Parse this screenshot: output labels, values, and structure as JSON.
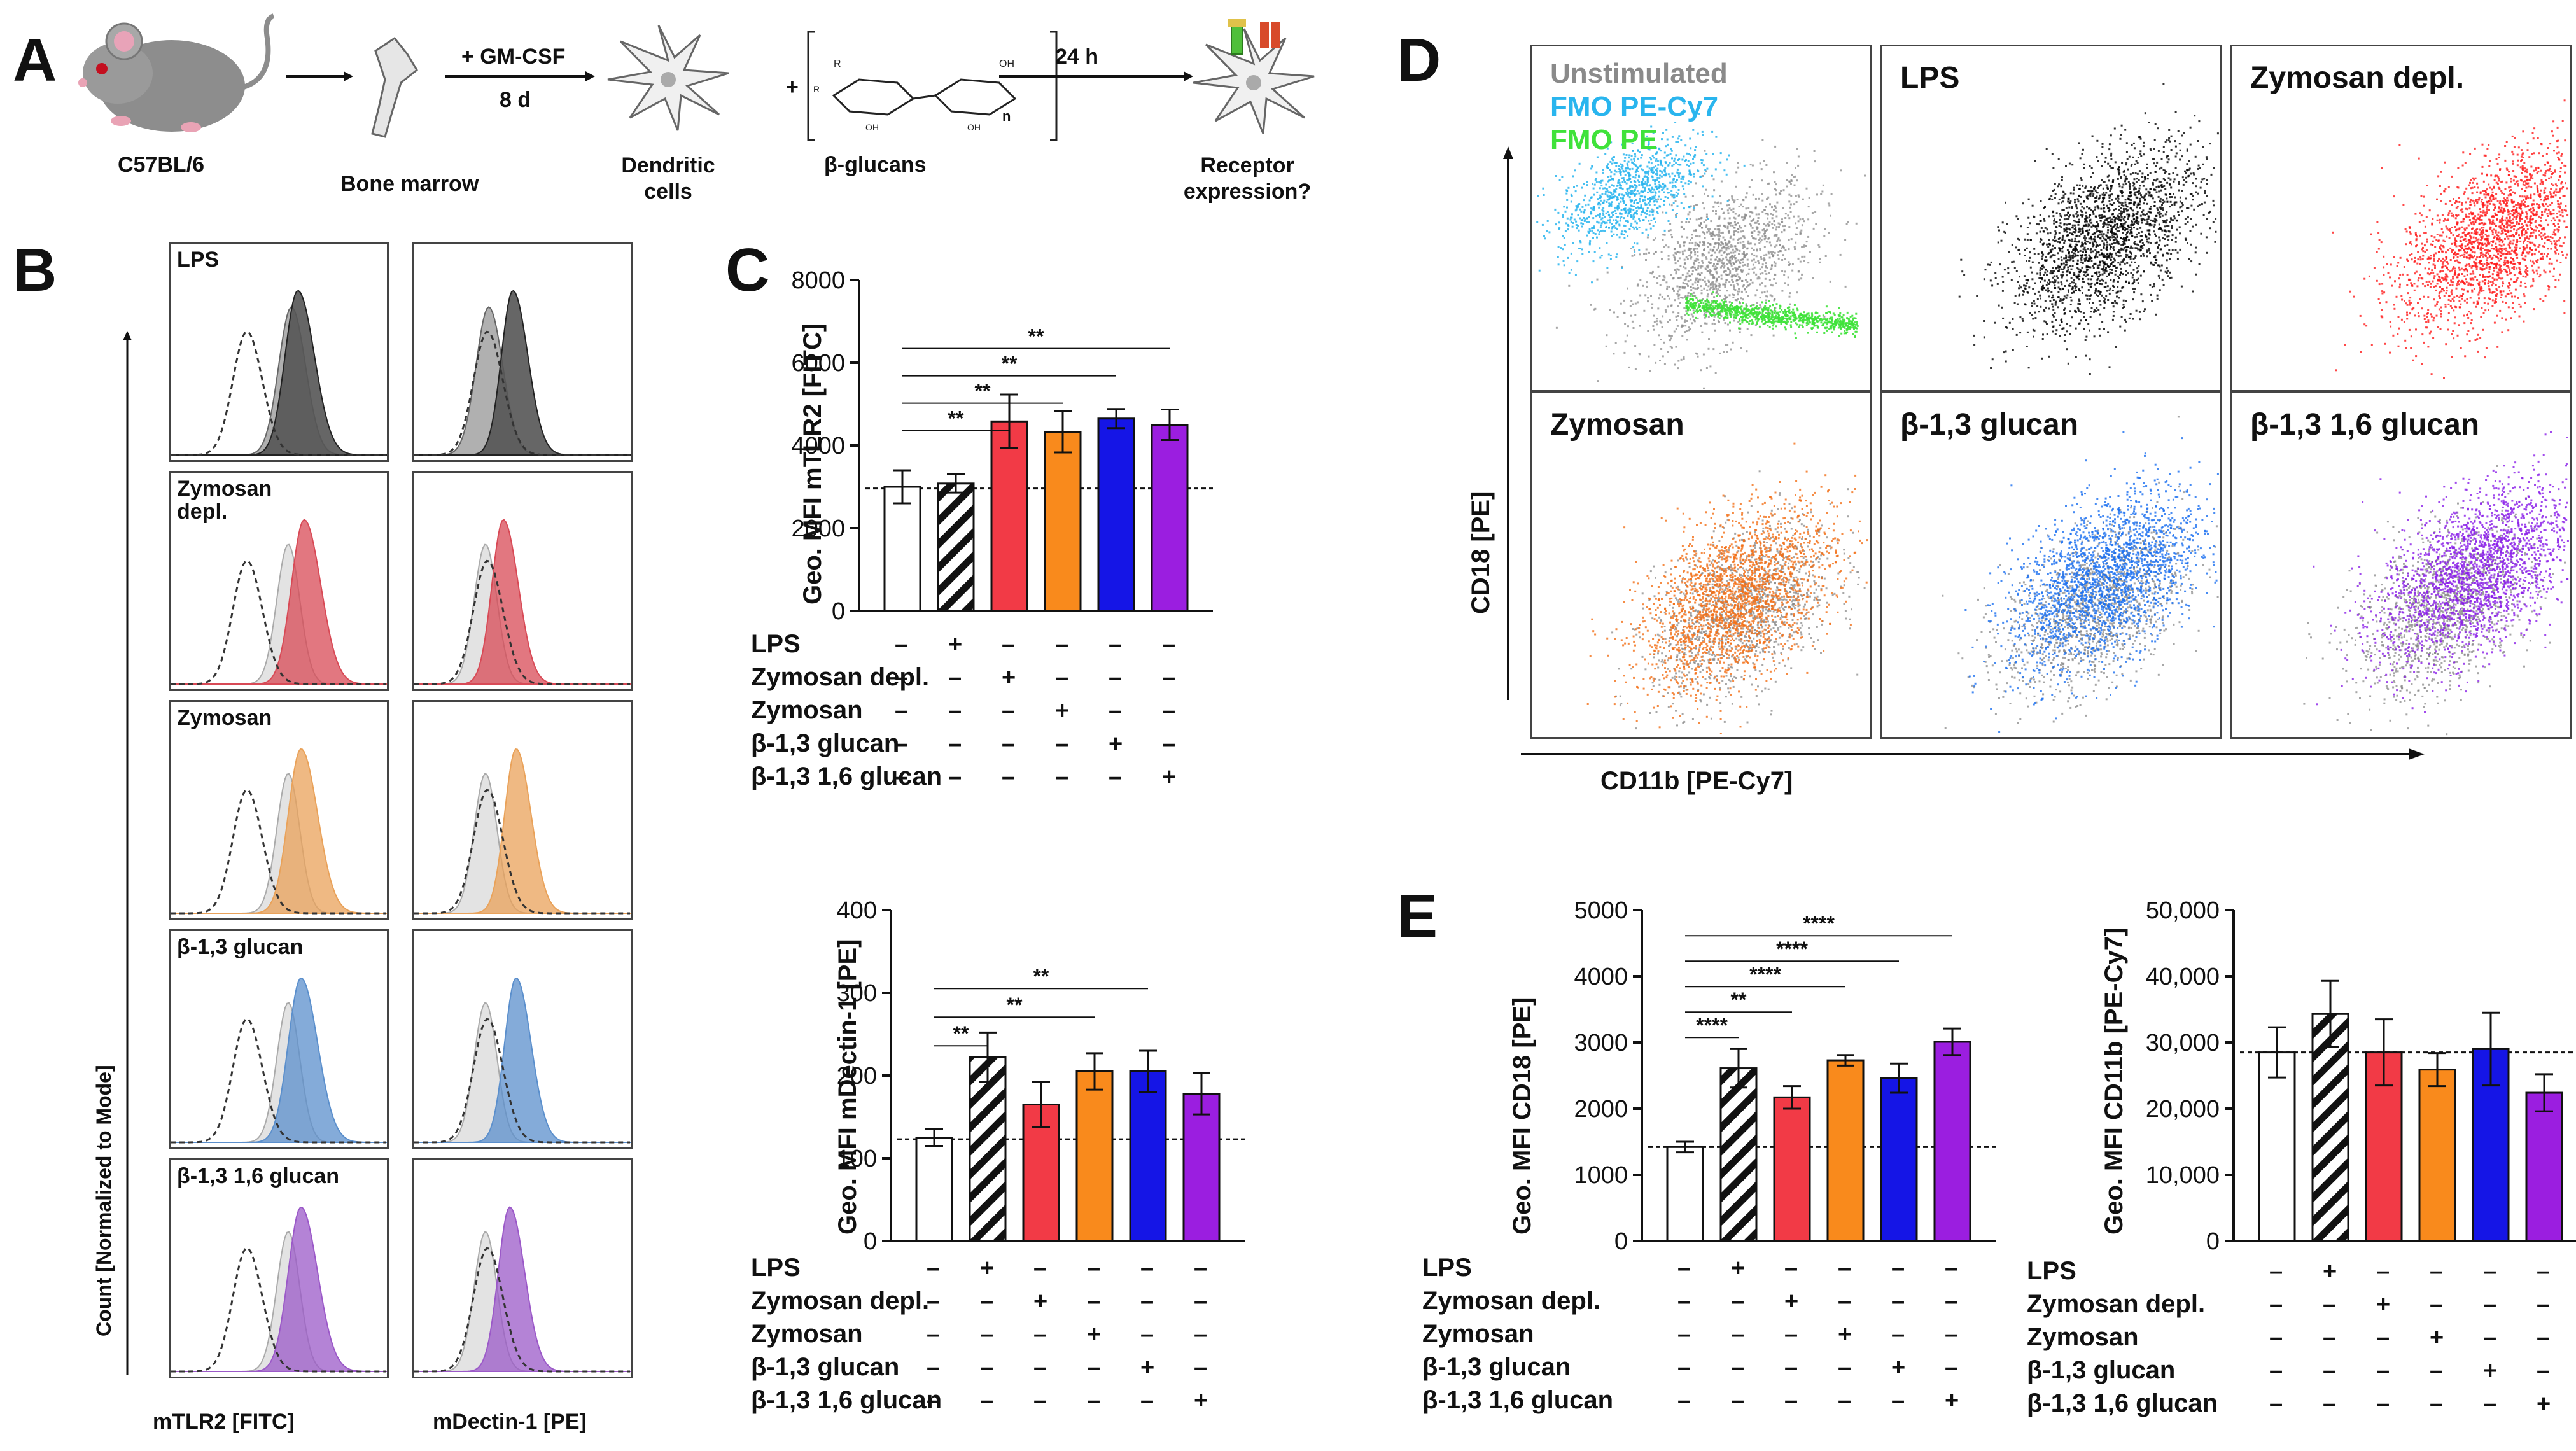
{
  "panel_letters": {
    "a": "A",
    "b": "B",
    "c": "C",
    "d": "D",
    "e": "E"
  },
  "panel_a": {
    "mouse": "C57BL/6",
    "bone": "Bone marrow",
    "arrow2_top": "+ GM-CSF",
    "arrow2_bottom": "8 d",
    "dc": "Dendritic\ncells",
    "plus": "+",
    "glucans": "β-glucans",
    "n": "n",
    "arrow3_top": "24 h",
    "receptor": "Receptor\nexpression?"
  },
  "panel_b": {
    "rows": [
      "LPS",
      "Zymosan\ndepl.",
      "Zymosan",
      "β-1,3 glucan",
      "β-1,3 1,6 glucan"
    ],
    "colors": [
      "#555555",
      "#d84a56",
      "#e9a25a",
      "#5b8fcc",
      "#9b59c8"
    ],
    "y_axis": "Count [Normalized to  Mode]",
    "x1": "mTLR2 [FITC]",
    "x2": "mDectin-1 [PE]"
  },
  "treatment_table": {
    "rows": [
      "LPS",
      "Zymosan depl.",
      "Zymosan",
      "β-1,3 glucan",
      "β-1,3 1,6 glucan"
    ],
    "marks": [
      [
        "–",
        "+",
        "–",
        "–",
        "–",
        "–"
      ],
      [
        "–",
        "–",
        "+",
        "–",
        "–",
        "–"
      ],
      [
        "–",
        "–",
        "–",
        "+",
        "–",
        "–"
      ],
      [
        "–",
        "–",
        "–",
        "–",
        "+",
        "–"
      ],
      [
        "–",
        "–",
        "–",
        "–",
        "–",
        "+"
      ]
    ]
  },
  "bar_colors": [
    "#ffffff",
    "hatch",
    "#f23a46",
    "#f98a1c",
    "#1515e6",
    "#9b1ee0"
  ],
  "chart_data": [
    {
      "id": "c_tlr2",
      "type": "bar",
      "ylabel": "Geo. MFI mTLR2 [FITC]",
      "ylim": [
        0,
        8000
      ],
      "ticks": [
        "0",
        "2000",
        "4000",
        "6000",
        "8000"
      ],
      "tickvals": [
        0,
        2000,
        4000,
        6000,
        8000
      ],
      "values": [
        3000,
        3080,
        4580,
        4330,
        4650,
        4500
      ],
      "errors": [
        400,
        220,
        650,
        500,
        230,
        370
      ],
      "baseline": 2960,
      "sig": [
        {
          "to": 2,
          "text": "**"
        },
        {
          "to": 3,
          "text": "**"
        },
        {
          "to": 4,
          "text": "**"
        },
        {
          "to": 5,
          "text": "**"
        }
      ]
    },
    {
      "id": "c_dectin",
      "type": "bar",
      "ylabel": "Geo. MFI mDectin-1 [PE]",
      "ylim": [
        0,
        400
      ],
      "ticks": [
        "0",
        "100",
        "200",
        "300",
        "400"
      ],
      "tickvals": [
        0,
        100,
        200,
        300,
        400
      ],
      "values": [
        125,
        222,
        165,
        205,
        205,
        178
      ],
      "errors": [
        10,
        30,
        27,
        22,
        25,
        25
      ],
      "baseline": 123,
      "sig": [
        {
          "to": 1,
          "text": "**"
        },
        {
          "to": 3,
          "text": "**"
        },
        {
          "to": 4,
          "text": "**"
        }
      ]
    },
    {
      "id": "e_cd18",
      "type": "bar",
      "ylabel": "Geo. MFI CD18 [PE]",
      "ylim": [
        0,
        5000
      ],
      "ticks": [
        "0",
        "1000",
        "2000",
        "3000",
        "4000",
        "5000"
      ],
      "tickvals": [
        0,
        1000,
        2000,
        3000,
        4000,
        5000
      ],
      "values": [
        1420,
        2610,
        2170,
        2730,
        2460,
        3010
      ],
      "errors": [
        80,
        290,
        170,
        80,
        220,
        200
      ],
      "baseline": 1420,
      "sig": [
        {
          "to": 1,
          "text": "****"
        },
        {
          "to": 2,
          "text": "**"
        },
        {
          "to": 3,
          "text": "****"
        },
        {
          "to": 4,
          "text": "****"
        },
        {
          "to": 5,
          "text": "****"
        }
      ]
    },
    {
      "id": "e_cd11b",
      "type": "bar",
      "ylabel": "Geo. MFI CD11b [PE-Cy7]",
      "ylim": [
        0,
        50000
      ],
      "ticks": [
        "0",
        "10,000",
        "20,000",
        "30,000",
        "40,000",
        "50,000"
      ],
      "tickvals": [
        0,
        10000,
        20000,
        30000,
        40000,
        50000
      ],
      "values": [
        28500,
        34300,
        28500,
        25900,
        29000,
        22400
      ],
      "errors": [
        3800,
        5000,
        5000,
        2500,
        5500,
        2800
      ],
      "baseline": 28500,
      "sig": []
    }
  ],
  "panel_d": {
    "legend": [
      {
        "text": "Unstimulated",
        "color": "#8a8a8a"
      },
      {
        "text": "FMO PE-Cy7",
        "color": "#29b5ee"
      },
      {
        "text": "FMO PE",
        "color": "#3fe23a"
      }
    ],
    "panels": [
      {
        "title": "LPS",
        "color": "#000000"
      },
      {
        "title": "Zymosan depl.",
        "color": "#ff1a1a"
      },
      {
        "title": "Zymosan",
        "color": "#f36f17"
      },
      {
        "title": "β-1,3 glucan",
        "color": "#1a6ff0"
      },
      {
        "title": "β-1,3 1,6 glucan",
        "color": "#8a1ee8"
      }
    ],
    "y_axis": "CD18 [PE]",
    "x_axis": "CD11b [PE-Cy7]"
  }
}
